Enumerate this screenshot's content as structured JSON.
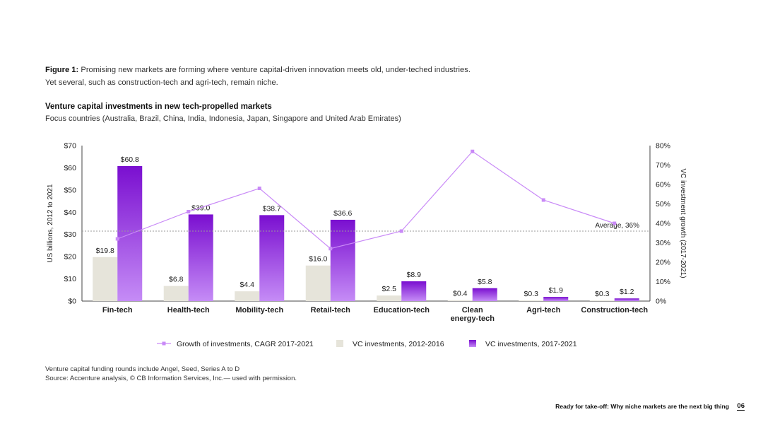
{
  "figure": {
    "label": "Figure 1:",
    "caption_line1": "Promising new markets are forming where venture capital-driven innovation meets old, under-teched industries.",
    "caption_line2": "Yet several, such as construction-tech and agri-tech, remain niche."
  },
  "footnote": {
    "line1": "Venture capital funding rounds include Angel, Seed, Series A to D",
    "line2": "Source: Accenture analysis, © CB Information Services, Inc.— used with permission."
  },
  "footer": {
    "title": "Ready for take-off: Why niche markets are the next big thing",
    "page": "06"
  },
  "colors": {
    "bar_2012": "#e6e4da",
    "bar_2017_top": "#7a0fd0",
    "bar_2017_bottom": "#c58cf6",
    "line": "#c98af7",
    "average": "#9a9a9a"
  },
  "chart_data": {
    "type": "bar",
    "title": "Venture capital investments in new tech-propelled markets",
    "subtitle": "Focus countries (Australia, Brazil, China, India, Indonesia, Japan, Singapore and United Arab Emirates)",
    "ylabel": "US billions, 2012 to 2021",
    "y2label": "VC investment growth (2017-2021)",
    "ylim": [
      0,
      70
    ],
    "y2lim": [
      0,
      80
    ],
    "yticks": [
      "$0",
      "$10",
      "$20",
      "$30",
      "$40",
      "$50",
      "$60",
      "$70"
    ],
    "y2ticks": [
      "0%",
      "10%",
      "20%",
      "30%",
      "40%",
      "50%",
      "60%",
      "70%",
      "80%"
    ],
    "categories": [
      [
        "Fin-tech"
      ],
      [
        "Health-tech"
      ],
      [
        "Mobility-tech"
      ],
      [
        "Retail-tech"
      ],
      [
        "Education-tech"
      ],
      [
        "Clean",
        "energy-tech"
      ],
      [
        "Agri-tech"
      ],
      [
        "Construction-tech"
      ]
    ],
    "series": [
      {
        "name": "VC investments, 2012-2016",
        "values": [
          19.8,
          6.8,
          4.4,
          16.0,
          2.5,
          0.4,
          0.3,
          0.3
        ],
        "labels": [
          "$19.8",
          "$6.8",
          "$4.4",
          "$16.0",
          "$2.5",
          "$0.4",
          "$0.3",
          "$0.3"
        ]
      },
      {
        "name": "VC investments, 2017-2021",
        "values": [
          60.8,
          39.0,
          38.7,
          36.6,
          8.9,
          5.8,
          1.9,
          1.2
        ],
        "labels": [
          "$60.8",
          "$39.0",
          "$38.7",
          "$36.6",
          "$8.9",
          "$5.8",
          "$1.9",
          "$1.2"
        ]
      },
      {
        "name": "Growth of investments, CAGR 2017-2021",
        "axis": "secondary",
        "values": [
          32,
          46,
          58,
          27,
          36,
          77,
          52,
          40
        ]
      }
    ],
    "average": {
      "value": 36,
      "label": "Average, 36%"
    },
    "legend": [
      "Growth of investments, CAGR 2017-2021",
      "VC investments, 2012-2016",
      "VC investments, 2017-2021"
    ]
  }
}
